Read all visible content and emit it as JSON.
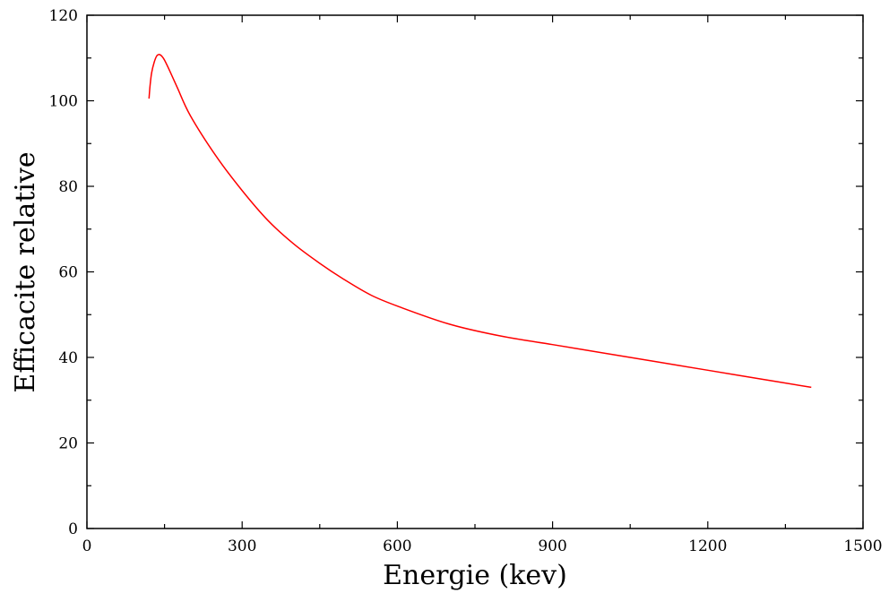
{
  "chart_data": {
    "type": "line",
    "title": "",
    "xlabel": "Energie (kev)",
    "ylabel": "Efficacite relative",
    "xlim": [
      0,
      1500
    ],
    "ylim": [
      0,
      120
    ],
    "xticks": [
      "0",
      "300",
      "600",
      "900",
      "1200",
      "1500"
    ],
    "yticks": [
      "0",
      "20",
      "40",
      "60",
      "80",
      "100",
      "120"
    ],
    "xtick_values": [
      0,
      300,
      600,
      900,
      1200,
      1500
    ],
    "ytick_values": [
      0,
      20,
      40,
      60,
      80,
      100,
      120
    ],
    "x_minor_step": 150,
    "y_minor_step": 10,
    "grid": false,
    "legend": "none",
    "series": [
      {
        "color": "#ff0000",
        "x": [
          120,
          122,
          125,
          130,
          135,
          140,
          145,
          150,
          160,
          175,
          200,
          250,
          300,
          350,
          400,
          450,
          500,
          550,
          600,
          700,
          800,
          900,
          1000,
          1100,
          1200,
          1300,
          1400
        ],
        "y": [
          100.5,
          103.5,
          106.5,
          109.0,
          110.5,
          110.8,
          110.4,
          109.5,
          107.0,
          103.0,
          96.5,
          87.0,
          79.0,
          72.0,
          66.5,
          62.0,
          58.0,
          54.5,
          52.0,
          47.8,
          45.0,
          43.0,
          41.0,
          39.0,
          37.0,
          35.0,
          33.0
        ]
      }
    ]
  }
}
